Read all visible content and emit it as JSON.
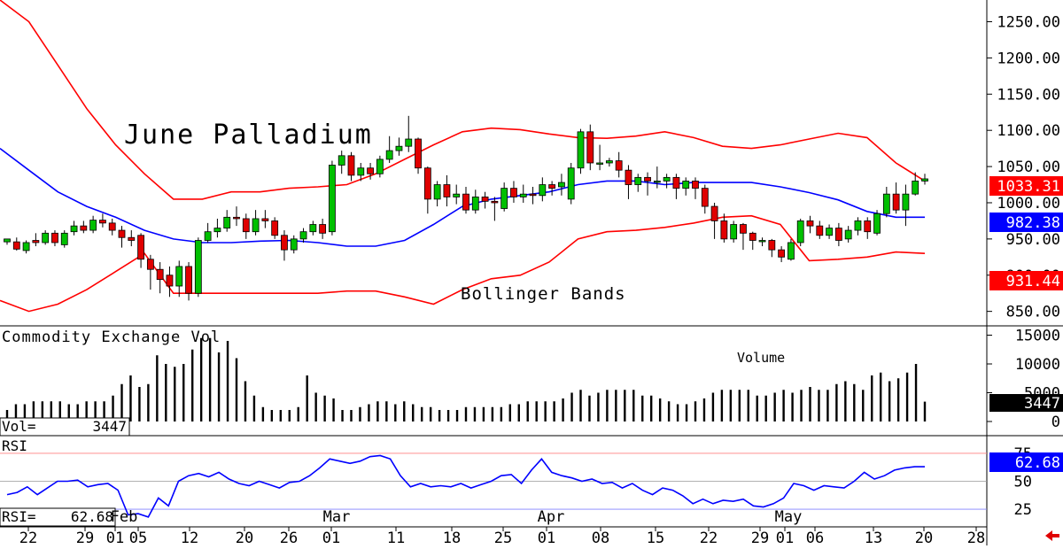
{
  "chart_data": [
    {
      "type": "candlestick",
      "title": "June Palladium",
      "annotation": "Bollinger Bands",
      "ylim": [
        830,
        1280
      ],
      "y_ticks": [
        "1250.00",
        "1200.00",
        "1150.00",
        "1100.00",
        "1050.00",
        "1000.00",
        "950.00",
        "900.00",
        "850.00"
      ],
      "y_tick_values": [
        1250,
        1200,
        1150,
        1100,
        1050,
        1000,
        950,
        900,
        850
      ],
      "last_price_label": "1033.31",
      "bb_mid_label": "982.38",
      "bb_lower_label": "931.44",
      "colors": {
        "up": "#00c000",
        "down": "#e00000",
        "upper_band": "#ff0000",
        "lower_band": "#ff0000",
        "mid_band": "#0000ff",
        "price_label_bg": "#ff0000",
        "mid_label_bg": "#0000ff"
      },
      "candles": [
        [
          946,
          950,
          942,
          946
        ],
        [
          946,
          936,
          934,
          952
        ],
        [
          934,
          945,
          930,
          948
        ],
        [
          948,
          945,
          940,
          958
        ],
        [
          945,
          958,
          942,
          962
        ],
        [
          958,
          945,
          940,
          962
        ],
        [
          942,
          958,
          938,
          962
        ],
        [
          960,
          968,
          955,
          975
        ],
        [
          968,
          962,
          958,
          975
        ],
        [
          962,
          976,
          958,
          982
        ],
        [
          976,
          972,
          966,
          985
        ],
        [
          972,
          962,
          955,
          978
        ],
        [
          962,
          952,
          938,
          968
        ],
        [
          952,
          948,
          940,
          962
        ],
        [
          955,
          922,
          910,
          958
        ],
        [
          922,
          908,
          880,
          928
        ],
        [
          908,
          894,
          875,
          918
        ],
        [
          900,
          885,
          870,
          912
        ],
        [
          885,
          912,
          870,
          920
        ],
        [
          912,
          875,
          865,
          918
        ],
        [
          875,
          948,
          870,
          952
        ],
        [
          948,
          960,
          945,
          972
        ],
        [
          960,
          965,
          952,
          978
        ],
        [
          965,
          980,
          960,
          990
        ],
        [
          980,
          978,
          968,
          995
        ],
        [
          978,
          960,
          950,
          985
        ],
        [
          960,
          978,
          955,
          990
        ],
        [
          978,
          975,
          965,
          990
        ],
        [
          975,
          955,
          950,
          980
        ],
        [
          955,
          935,
          920,
          962
        ],
        [
          935,
          950,
          930,
          955
        ],
        [
          950,
          960,
          945,
          965
        ],
        [
          960,
          970,
          955,
          975
        ],
        [
          970,
          958,
          950,
          978
        ],
        [
          960,
          1052,
          955,
          1058
        ],
        [
          1052,
          1065,
          1040,
          1072
        ],
        [
          1065,
          1038,
          1030,
          1070
        ],
        [
          1038,
          1048,
          1030,
          1055
        ],
        [
          1048,
          1040,
          1032,
          1055
        ],
        [
          1040,
          1060,
          1035,
          1065
        ],
        [
          1060,
          1072,
          1055,
          1092
        ],
        [
          1072,
          1078,
          1065,
          1090
        ],
        [
          1078,
          1088,
          1070,
          1120
        ],
        [
          1088,
          1048,
          1040,
          1090
        ],
        [
          1048,
          1005,
          985,
          1050
        ],
        [
          1005,
          1025,
          995,
          1030
        ],
        [
          1025,
          1008,
          995,
          1038
        ],
        [
          1008,
          1012,
          998,
          1025
        ],
        [
          1012,
          990,
          985,
          1022
        ],
        [
          990,
          1008,
          985,
          1018
        ],
        [
          1008,
          1002,
          992,
          1015
        ],
        [
          1002,
          1000,
          975,
          1008
        ],
        [
          992,
          1020,
          988,
          1028
        ],
        [
          1020,
          1008,
          1000,
          1030
        ],
        [
          1008,
          1012,
          1000,
          1025
        ],
        [
          1012,
          1010,
          998,
          1022
        ],
        [
          1010,
          1025,
          1002,
          1035
        ],
        [
          1025,
          1020,
          1010,
          1030
        ],
        [
          1022,
          1028,
          1010,
          1040
        ],
        [
          1005,
          1048,
          998,
          1055
        ],
        [
          1048,
          1098,
          1040,
          1102
        ],
        [
          1098,
          1055,
          1045,
          1108
        ],
        [
          1055,
          1055,
          1045,
          1080
        ],
        [
          1055,
          1058,
          1050,
          1062
        ],
        [
          1058,
          1045,
          1035,
          1070
        ],
        [
          1045,
          1025,
          1005,
          1052
        ],
        [
          1025,
          1035,
          1015,
          1040
        ],
        [
          1035,
          1030,
          1010,
          1042
        ],
        [
          1030,
          1030,
          1020,
          1050
        ],
        [
          1030,
          1035,
          1020,
          1040
        ],
        [
          1035,
          1020,
          1005,
          1040
        ],
        [
          1020,
          1030,
          1010,
          1035
        ],
        [
          1030,
          1020,
          1005,
          1035
        ],
        [
          1020,
          995,
          985,
          1025
        ],
        [
          995,
          975,
          950,
          1000
        ],
        [
          975,
          950,
          945,
          985
        ],
        [
          950,
          970,
          945,
          975
        ],
        [
          970,
          958,
          935,
          972
        ],
        [
          958,
          948,
          935,
          960
        ],
        [
          948,
          948,
          940,
          952
        ],
        [
          948,
          935,
          925,
          950
        ],
        [
          935,
          925,
          918,
          940
        ],
        [
          922,
          945,
          920,
          950
        ],
        [
          945,
          975,
          940,
          978
        ],
        [
          975,
          968,
          958,
          982
        ],
        [
          968,
          955,
          950,
          975
        ],
        [
          955,
          965,
          950,
          970
        ],
        [
          965,
          948,
          940,
          972
        ],
        [
          950,
          962,
          945,
          968
        ],
        [
          962,
          975,
          955,
          980
        ],
        [
          975,
          960,
          950,
          980
        ],
        [
          958,
          985,
          955,
          990
        ],
        [
          985,
          1012,
          980,
          1022
        ],
        [
          1012,
          990,
          985,
          1028
        ],
        [
          990,
          1012,
          968,
          1025
        ],
        [
          1012,
          1030,
          1010,
          1042
        ],
        [
          1030,
          1033,
          1025,
          1040
        ]
      ],
      "upper_band": [
        1280,
        1250,
        1190,
        1130,
        1080,
        1040,
        1005,
        1005,
        1015,
        1015,
        1020,
        1022,
        1025,
        1040,
        1060,
        1080,
        1098,
        1103,
        1101,
        1095,
        1090,
        1089,
        1092,
        1098,
        1090,
        1078,
        1075,
        1080,
        1088,
        1096,
        1090,
        1055,
        1030
      ],
      "middle_band": [
        1075,
        1045,
        1015,
        995,
        980,
        962,
        950,
        945,
        945,
        947,
        948,
        945,
        940,
        940,
        948,
        970,
        995,
        1005,
        1010,
        1015,
        1025,
        1030,
        1030,
        1025,
        1028,
        1028,
        1028,
        1022,
        1014,
        1004,
        988,
        980,
        980
      ],
      "lower_band": [
        865,
        850,
        860,
        880,
        905,
        930,
        875,
        875,
        875,
        875,
        875,
        875,
        878,
        878,
        870,
        860,
        880,
        895,
        900,
        918,
        950,
        960,
        962,
        966,
        972,
        980,
        982,
        970,
        920,
        922,
        925,
        932,
        930
      ],
      "axis_dates": [
        "22",
        "29",
        "01",
        "05",
        "12",
        "20",
        "26",
        "01",
        "11",
        "18",
        "25",
        "01",
        "08",
        "15",
        "22",
        "29",
        "01",
        "06",
        "13",
        "20",
        "28"
      ],
      "month_labels": [
        "Feb",
        "Mar",
        "Apr",
        "May"
      ]
    },
    {
      "type": "bar",
      "title": "Commodity Exchange Vol",
      "annotation": "Volume",
      "ylim": [
        0,
        16000
      ],
      "y_ticks": [
        "15000",
        "10000",
        "5000",
        "0"
      ],
      "y_tick_values": [
        15000,
        10000,
        5000,
        0
      ],
      "last_label": "3447",
      "readout_label": "Vol=",
      "readout_value": "3447",
      "values": [
        2000,
        3000,
        3000,
        3500,
        3500,
        3500,
        3500,
        3000,
        3000,
        3500,
        3500,
        3500,
        4500,
        6500,
        8000,
        6000,
        6500,
        11500,
        10000,
        9500,
        10000,
        12500,
        14500,
        14500,
        12000,
        14000,
        11000,
        7000,
        4500,
        2500,
        2000,
        2000,
        2000,
        2500,
        8000,
        5000,
        4500,
        4000,
        2000,
        2000,
        2500,
        3000,
        3500,
        3500,
        3000,
        3500,
        3000,
        2500,
        2500,
        2000,
        2000,
        2000,
        2500,
        2500,
        2500,
        2500,
        2500,
        3000,
        3000,
        3500,
        3500,
        3500,
        3500,
        4000,
        5000,
        5500,
        4500,
        5000,
        5500,
        5500,
        5500,
        5500,
        4500,
        4500,
        4000,
        3500,
        3000,
        3000,
        3500,
        4000,
        5000,
        5500,
        5500,
        5500,
        5500,
        4500,
        4500,
        5000,
        5500,
        5000,
        5500,
        6000,
        5500,
        5500,
        6500,
        7000,
        6500,
        5500,
        8000,
        8500,
        7000,
        7500,
        8500,
        10000,
        3447
      ]
    },
    {
      "type": "line",
      "title": "RSI",
      "ylim": [
        10,
        90
      ],
      "y_ticks": [
        "75",
        "50",
        "25"
      ],
      "y_tick_values": [
        75,
        50,
        25
      ],
      "last_label": "62.68",
      "readout_label": "RSI=",
      "readout_value": "62.68",
      "series": [
        {
          "values": [
            38,
            40,
            45,
            38,
            44,
            50,
            50,
            51,
            45,
            47,
            48,
            42,
            20,
            21,
            18,
            35,
            28,
            50,
            55,
            57,
            54,
            58,
            52,
            48,
            46,
            50,
            47,
            44,
            49,
            50,
            55,
            62,
            70,
            68,
            66,
            68,
            72,
            73,
            70,
            55,
            45,
            48,
            45,
            46,
            45,
            48,
            44,
            47,
            50,
            55,
            56,
            48,
            60,
            70,
            58,
            55,
            53,
            50,
            52,
            48,
            49,
            44,
            48,
            42,
            38,
            44,
            42,
            37,
            30,
            34,
            30,
            33,
            32,
            34,
            28,
            27,
            30,
            35,
            48,
            46,
            42,
            46,
            45,
            44,
            50,
            58,
            52,
            55,
            60,
            62,
            63,
            63
          ]
        }
      ]
    }
  ]
}
